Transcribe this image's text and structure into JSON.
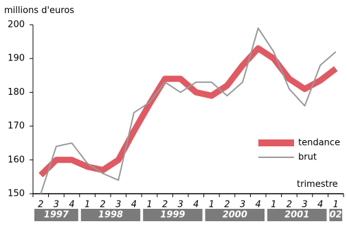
{
  "chart_data": {
    "type": "line",
    "ylabel": "millions d'euros",
    "xlabel": "trimestre",
    "ylim": [
      150,
      200
    ],
    "yticks": [
      "150",
      "160",
      "170",
      "180",
      "190",
      "200"
    ],
    "grid": false,
    "legend_position": "right",
    "quarter_labels": [
      "2",
      "3",
      "4",
      "1",
      "2",
      "3",
      "4",
      "1",
      "2",
      "3",
      "4",
      "1",
      "2",
      "3",
      "4",
      "1",
      "2",
      "3",
      "4",
      "1"
    ],
    "year_groups": [
      {
        "label": "1997",
        "start": 0,
        "end": 2
      },
      {
        "label": "1998",
        "start": 3,
        "end": 6
      },
      {
        "label": "1999",
        "start": 7,
        "end": 10
      },
      {
        "label": "2000",
        "start": 11,
        "end": 14
      },
      {
        "label": "2001",
        "start": 15,
        "end": 18
      },
      {
        "label": "02",
        "start": 19,
        "end": 19
      }
    ],
    "x": [
      "1997 T2",
      "1997 T3",
      "1997 T4",
      "1998 T1",
      "1998 T2",
      "1998 T3",
      "1998 T4",
      "1999 T1",
      "1999 T2",
      "1999 T3",
      "1999 T4",
      "2000 T1",
      "2000 T2",
      "2000 T3",
      "2000 T4",
      "2001 T1",
      "2001 T2",
      "2001 T3",
      "2001 T4",
      "2002 T1"
    ],
    "series": [
      {
        "name": "tendance",
        "color": "#df5a63",
        "values": [
          155.5,
          160,
          160,
          158,
          157,
          160,
          168.5,
          176.5,
          184,
          184,
          180,
          179,
          182,
          188,
          193,
          190,
          184,
          181,
          183.5,
          187
        ]
      },
      {
        "name": "brut",
        "color": "#999999",
        "values": [
          150,
          164,
          165,
          159,
          156,
          154,
          174,
          177,
          183,
          180,
          183,
          183,
          179,
          183,
          199,
          192,
          181,
          176,
          188,
          192
        ]
      }
    ]
  }
}
